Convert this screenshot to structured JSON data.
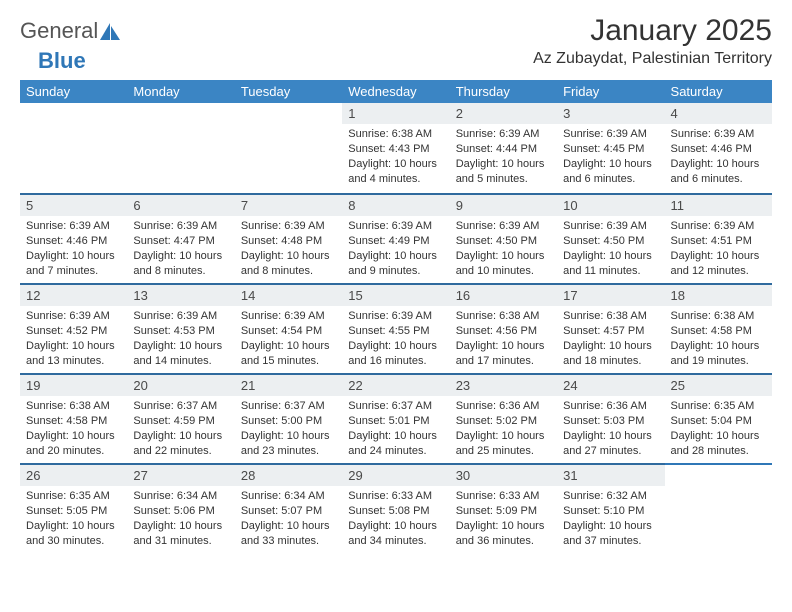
{
  "logo": {
    "text1": "General",
    "text2": "Blue"
  },
  "title": "January 2025",
  "location": "Az Zubaydat, Palestinian Territory",
  "colors": {
    "header_bg": "#3b85c4",
    "header_border": "#2f6a9e",
    "daynum_bg": "#eceff1",
    "text": "#333333",
    "logo_blue": "#2f77b7"
  },
  "typography": {
    "title_fontsize": 30,
    "location_fontsize": 16,
    "th_fontsize": 13,
    "daynum_fontsize": 13,
    "info_fontsize": 11
  },
  "weekdays": [
    "Sunday",
    "Monday",
    "Tuesday",
    "Wednesday",
    "Thursday",
    "Friday",
    "Saturday"
  ],
  "weeks": [
    [
      null,
      null,
      null,
      {
        "n": "1",
        "sunrise": "6:38 AM",
        "sunset": "4:43 PM",
        "daylight": "10 hours and 4 minutes."
      },
      {
        "n": "2",
        "sunrise": "6:39 AM",
        "sunset": "4:44 PM",
        "daylight": "10 hours and 5 minutes."
      },
      {
        "n": "3",
        "sunrise": "6:39 AM",
        "sunset": "4:45 PM",
        "daylight": "10 hours and 6 minutes."
      },
      {
        "n": "4",
        "sunrise": "6:39 AM",
        "sunset": "4:46 PM",
        "daylight": "10 hours and 6 minutes."
      }
    ],
    [
      {
        "n": "5",
        "sunrise": "6:39 AM",
        "sunset": "4:46 PM",
        "daylight": "10 hours and 7 minutes."
      },
      {
        "n": "6",
        "sunrise": "6:39 AM",
        "sunset": "4:47 PM",
        "daylight": "10 hours and 8 minutes."
      },
      {
        "n": "7",
        "sunrise": "6:39 AM",
        "sunset": "4:48 PM",
        "daylight": "10 hours and 8 minutes."
      },
      {
        "n": "8",
        "sunrise": "6:39 AM",
        "sunset": "4:49 PM",
        "daylight": "10 hours and 9 minutes."
      },
      {
        "n": "9",
        "sunrise": "6:39 AM",
        "sunset": "4:50 PM",
        "daylight": "10 hours and 10 minutes."
      },
      {
        "n": "10",
        "sunrise": "6:39 AM",
        "sunset": "4:50 PM",
        "daylight": "10 hours and 11 minutes."
      },
      {
        "n": "11",
        "sunrise": "6:39 AM",
        "sunset": "4:51 PM",
        "daylight": "10 hours and 12 minutes."
      }
    ],
    [
      {
        "n": "12",
        "sunrise": "6:39 AM",
        "sunset": "4:52 PM",
        "daylight": "10 hours and 13 minutes."
      },
      {
        "n": "13",
        "sunrise": "6:39 AM",
        "sunset": "4:53 PM",
        "daylight": "10 hours and 14 minutes."
      },
      {
        "n": "14",
        "sunrise": "6:39 AM",
        "sunset": "4:54 PM",
        "daylight": "10 hours and 15 minutes."
      },
      {
        "n": "15",
        "sunrise": "6:39 AM",
        "sunset": "4:55 PM",
        "daylight": "10 hours and 16 minutes."
      },
      {
        "n": "16",
        "sunrise": "6:38 AM",
        "sunset": "4:56 PM",
        "daylight": "10 hours and 17 minutes."
      },
      {
        "n": "17",
        "sunrise": "6:38 AM",
        "sunset": "4:57 PM",
        "daylight": "10 hours and 18 minutes."
      },
      {
        "n": "18",
        "sunrise": "6:38 AM",
        "sunset": "4:58 PM",
        "daylight": "10 hours and 19 minutes."
      }
    ],
    [
      {
        "n": "19",
        "sunrise": "6:38 AM",
        "sunset": "4:58 PM",
        "daylight": "10 hours and 20 minutes."
      },
      {
        "n": "20",
        "sunrise": "6:37 AM",
        "sunset": "4:59 PM",
        "daylight": "10 hours and 22 minutes."
      },
      {
        "n": "21",
        "sunrise": "6:37 AM",
        "sunset": "5:00 PM",
        "daylight": "10 hours and 23 minutes."
      },
      {
        "n": "22",
        "sunrise": "6:37 AM",
        "sunset": "5:01 PM",
        "daylight": "10 hours and 24 minutes."
      },
      {
        "n": "23",
        "sunrise": "6:36 AM",
        "sunset": "5:02 PM",
        "daylight": "10 hours and 25 minutes."
      },
      {
        "n": "24",
        "sunrise": "6:36 AM",
        "sunset": "5:03 PM",
        "daylight": "10 hours and 27 minutes."
      },
      {
        "n": "25",
        "sunrise": "6:35 AM",
        "sunset": "5:04 PM",
        "daylight": "10 hours and 28 minutes."
      }
    ],
    [
      {
        "n": "26",
        "sunrise": "6:35 AM",
        "sunset": "5:05 PM",
        "daylight": "10 hours and 30 minutes."
      },
      {
        "n": "27",
        "sunrise": "6:34 AM",
        "sunset": "5:06 PM",
        "daylight": "10 hours and 31 minutes."
      },
      {
        "n": "28",
        "sunrise": "6:34 AM",
        "sunset": "5:07 PM",
        "daylight": "10 hours and 33 minutes."
      },
      {
        "n": "29",
        "sunrise": "6:33 AM",
        "sunset": "5:08 PM",
        "daylight": "10 hours and 34 minutes."
      },
      {
        "n": "30",
        "sunrise": "6:33 AM",
        "sunset": "5:09 PM",
        "daylight": "10 hours and 36 minutes."
      },
      {
        "n": "31",
        "sunrise": "6:32 AM",
        "sunset": "5:10 PM",
        "daylight": "10 hours and 37 minutes."
      },
      null
    ]
  ],
  "labels": {
    "sunrise": "Sunrise:",
    "sunset": "Sunset:",
    "daylight": "Daylight:"
  }
}
